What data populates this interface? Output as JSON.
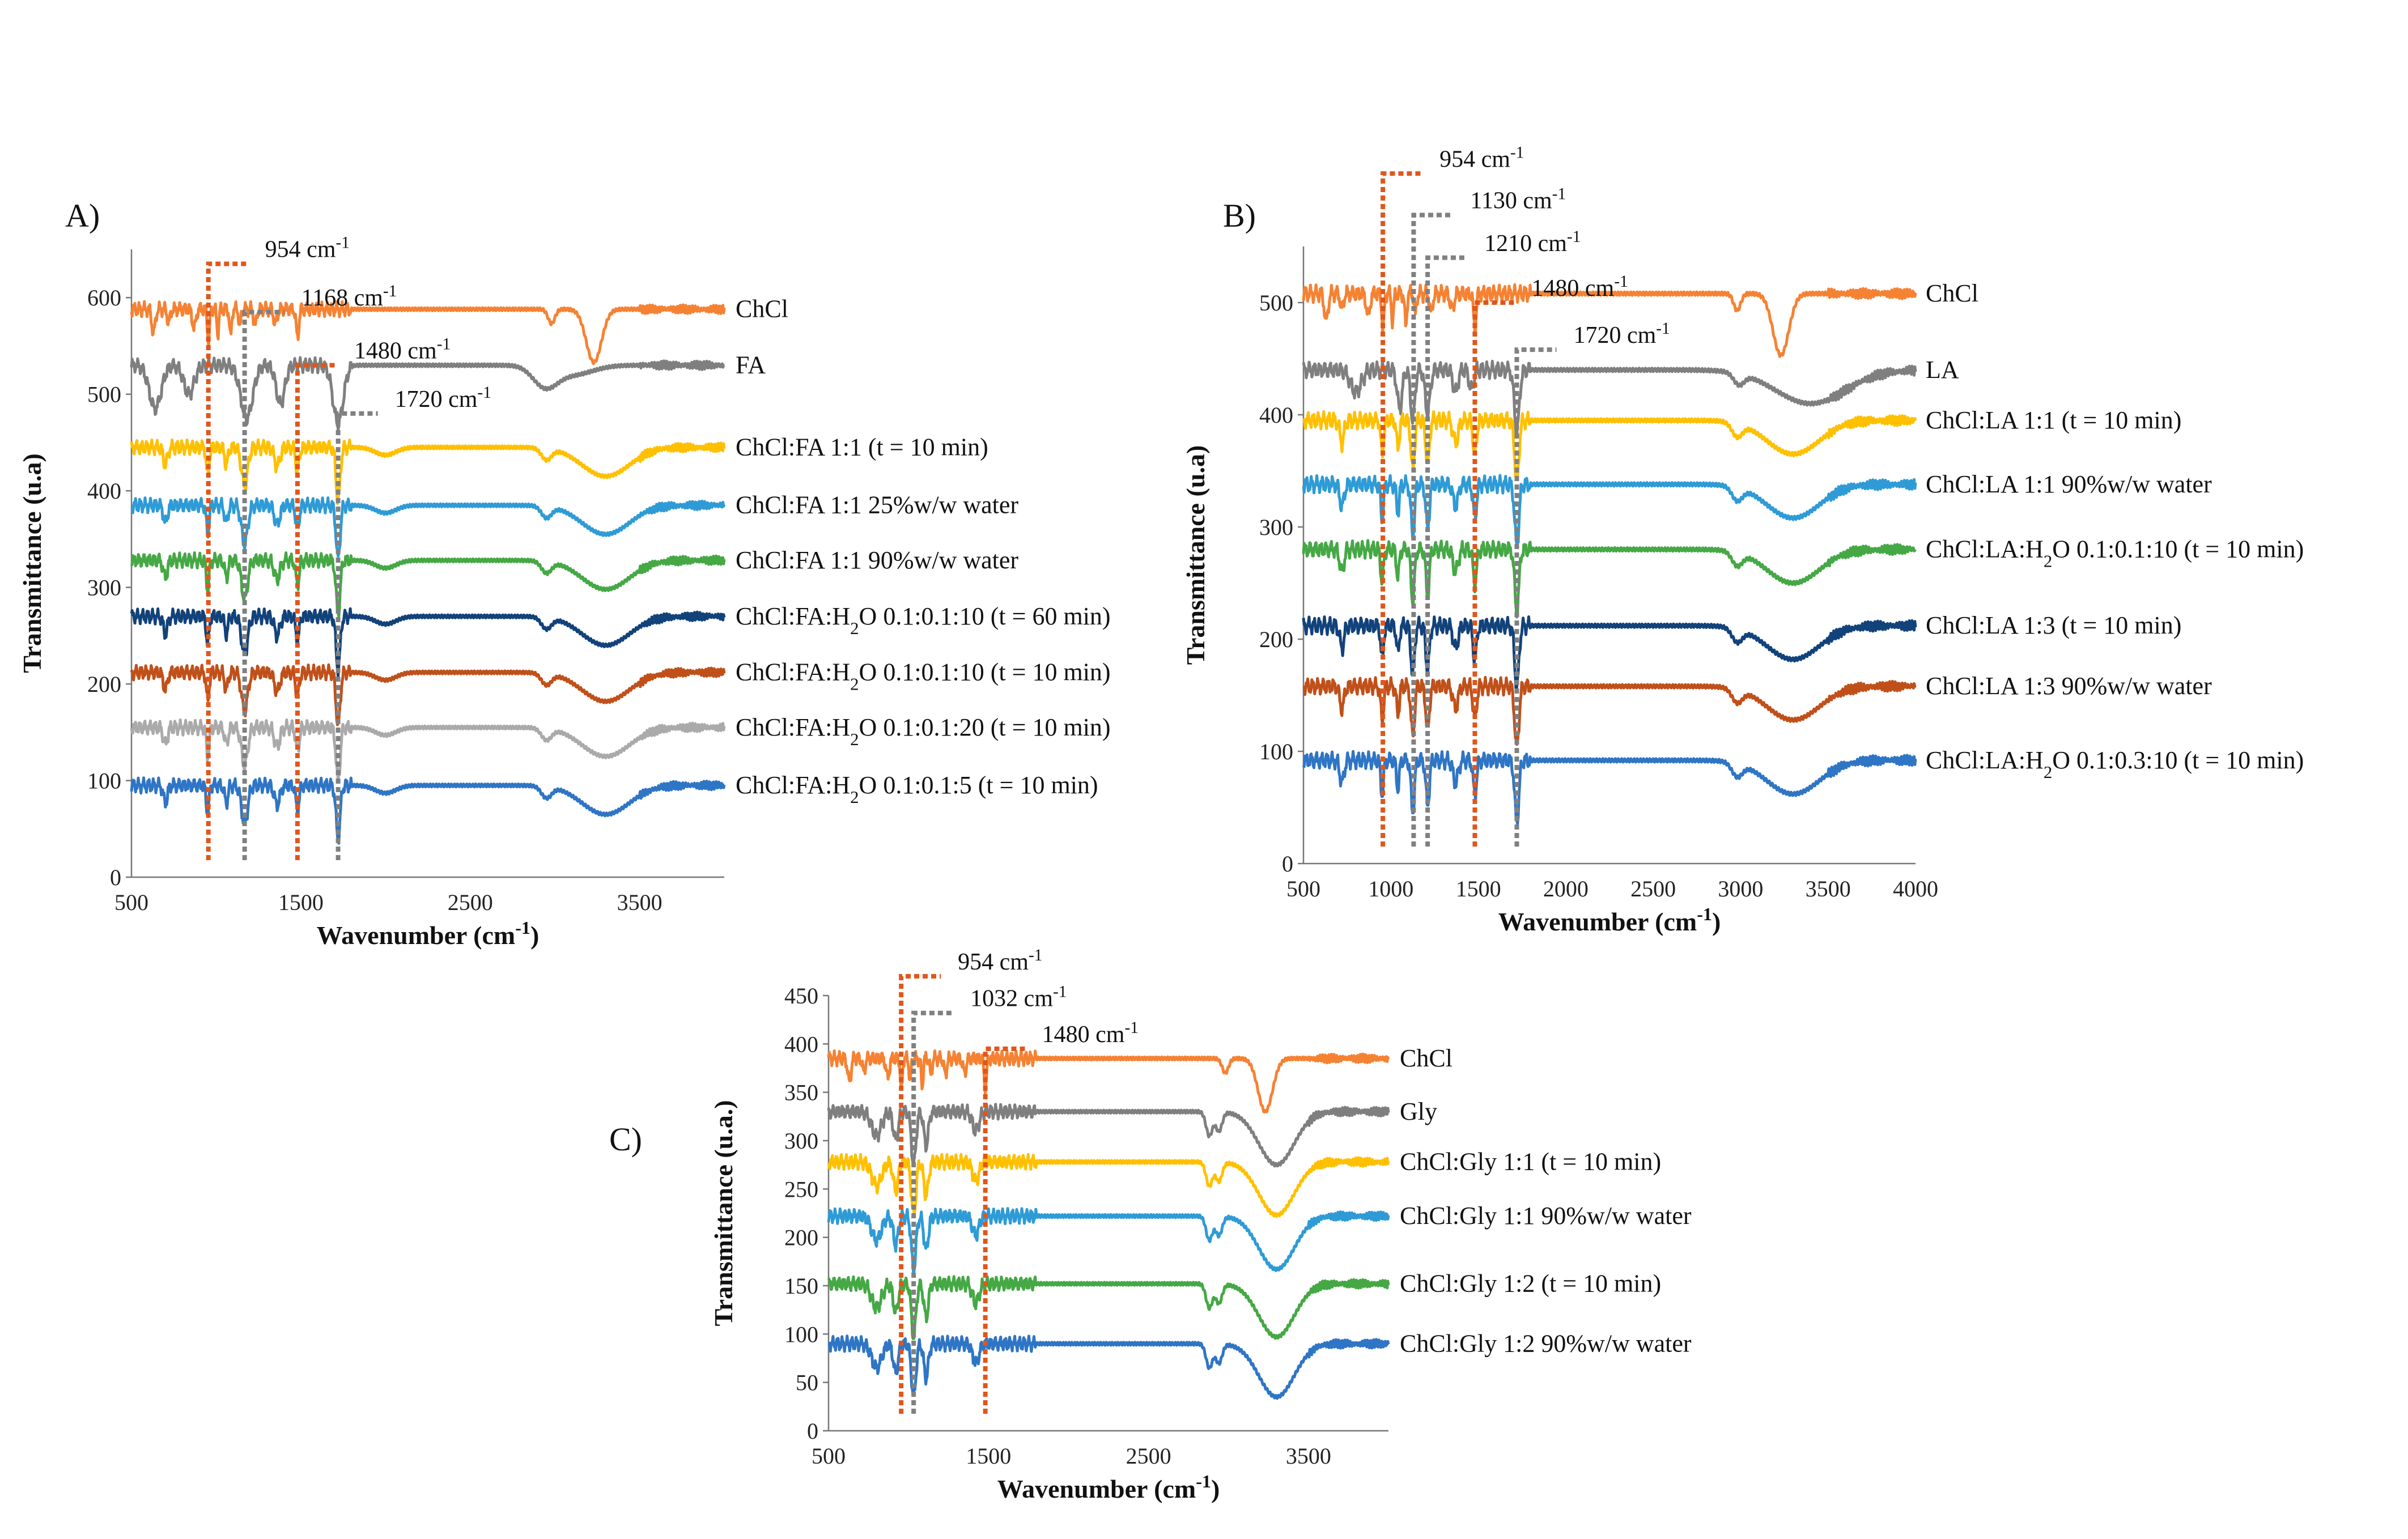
{
  "chart_data": [
    {
      "panel": "A)",
      "type": "line",
      "xlabel": "Wavenumber (cm-1)",
      "ylabel": "Transmittance (u.a)",
      "xlim": [
        500,
        4000
      ],
      "ylim": [
        0,
        650
      ],
      "xticks": [
        500,
        1500,
        2500,
        3500
      ],
      "yticks": [
        0,
        100,
        200,
        300,
        400,
        500,
        600
      ],
      "markers": [
        {
          "wavenumber": 954,
          "label": "954 cm-1",
          "color": "#E0561B",
          "top": 635
        },
        {
          "wavenumber": 1168,
          "label": "1168 cm-1",
          "color": "#808080",
          "top": 585
        },
        {
          "wavenumber": 1480,
          "label": "1480 cm-1",
          "color": "#E0561B",
          "top": 530
        },
        {
          "wavenumber": 1720,
          "label": "1720 cm-1",
          "color": "#808080",
          "top": 480
        }
      ],
      "series": [
        {
          "name": "ChCl",
          "label": "ChCl",
          "color": "#F58233",
          "baseline": 588,
          "profile": "chcl"
        },
        {
          "name": "FA",
          "label": "FA",
          "color": "#7F7F7F",
          "baseline": 530,
          "profile": "fa"
        },
        {
          "name": "ChCl:FA 1:1 (t = 10 min)",
          "label": "ChCl:FA 1:1 (t = 10 min)",
          "color": "#FFC000",
          "baseline": 445,
          "profile": "mix"
        },
        {
          "name": "ChCl:FA 1:1 25%w/w water",
          "label": "ChCl:FA 1:1 25%w/w water",
          "color": "#2E9BD6",
          "baseline": 385,
          "profile": "mix"
        },
        {
          "name": "ChCl:FA 1:1 90%w/w water",
          "label": "ChCl:FA 1:1 90%w/w water",
          "color": "#45A845",
          "baseline": 328,
          "profile": "mix"
        },
        {
          "name": "ChCl:FA:H2O 0.1:0.1:10 (t = 60 min)",
          "label": "ChCl:FA:H2O 0.1:0.1:10 (t = 60 min)",
          "color": "#12427A",
          "baseline": 270,
          "profile": "mix"
        },
        {
          "name": "ChCl:FA:H2O 0.1:0.1:10 (t = 10 min)",
          "label": "ChCl:FA:H2O 0.1:0.1:10 (t = 10 min)",
          "color": "#C0501A",
          "baseline": 212,
          "profile": "mix"
        },
        {
          "name": "ChCl:FA:H2O 0.1:0.1:20 (t = 10 min)",
          "label": "ChCl:FA:H2O 0.1:0.1:20 (t = 10 min)",
          "color": "#AAAAAA",
          "baseline": 155,
          "profile": "mix"
        },
        {
          "name": "ChCl:FA:H2O 0.1:0.1:5 (t = 10 min)",
          "label": "ChCl:FA:H2O 0.1:0.1:5 (t = 10 min)",
          "color": "#2F75C5",
          "baseline": 95,
          "profile": "mix"
        }
      ]
    },
    {
      "panel": "B)",
      "type": "line",
      "xlabel": "Wavenumber (cm-1)",
      "ylabel": "Transmittance (u.a)",
      "xlim": [
        500,
        4000
      ],
      "ylim": [
        0,
        550
      ],
      "xticks": [
        500,
        1000,
        1500,
        2000,
        2500,
        3000,
        3500,
        4000
      ],
      "yticks": [
        0,
        100,
        200,
        300,
        400,
        500
      ],
      "markers": [
        {
          "wavenumber": 954,
          "label": "954 cm-1",
          "color": "#E0561B",
          "top": 615
        },
        {
          "wavenumber": 1130,
          "label": "1130 cm-1",
          "color": "#808080",
          "top": 578
        },
        {
          "wavenumber": 1210,
          "label": "1210 cm-1",
          "color": "#808080",
          "top": 540
        },
        {
          "wavenumber": 1480,
          "label": "1480 cm-1",
          "color": "#E0561B",
          "top": 500
        },
        {
          "wavenumber": 1720,
          "label": "1720 cm-1",
          "color": "#808080",
          "top": 458
        }
      ],
      "series": [
        {
          "name": "ChCl",
          "label": "ChCl",
          "color": "#F58233",
          "baseline": 508,
          "profile": "chcl"
        },
        {
          "name": "LA",
          "label": "LA",
          "color": "#7F7F7F",
          "baseline": 440,
          "profile": "la"
        },
        {
          "name": "ChCl:LA 1:1 (t = 10 min)",
          "label": "ChCl:LA 1:1 (t = 10 min)",
          "color": "#FFC000",
          "baseline": 395,
          "profile": "mixla"
        },
        {
          "name": "ChCl:LA 1:1 90%w/w water",
          "label": "ChCl:LA 1:1 90%w/w water",
          "color": "#2E9BD6",
          "baseline": 338,
          "profile": "mixla"
        },
        {
          "name": "ChCl:LA:H2O 0.1:0.1:10 (t = 10 min)",
          "label": "ChCl:LA:H2O 0.1:0.1:10 (t = 10 min)",
          "color": "#45A845",
          "baseline": 280,
          "profile": "mixla"
        },
        {
          "name": "ChCl:LA 1:3 (t = 10 min)",
          "label": "ChCl:LA 1:3 (t = 10 min)",
          "color": "#12427A",
          "baseline": 212,
          "profile": "mixla"
        },
        {
          "name": "ChCl:LA 1:3 90%w/w water",
          "label": "ChCl:LA 1:3 90%w/w water",
          "color": "#C0501A",
          "baseline": 158,
          "profile": "mixla"
        },
        {
          "name": "ChCl:LA:H2O 0.1:0.3:10 (t = 10 min)",
          "label": "ChCl:LA:H2O 0.1:0.3:10 (t = 10 min)",
          "color": "#2F75C5",
          "baseline": 92,
          "profile": "mixla"
        }
      ]
    },
    {
      "panel": "C)",
      "type": "line",
      "xlabel": "Wavenumber (cm-1)",
      "ylabel": "Transmittance (u.a.)",
      "xlim": [
        500,
        4000
      ],
      "ylim": [
        0,
        450
      ],
      "xticks": [
        500,
        1500,
        2500,
        3500
      ],
      "yticks": [
        0,
        50,
        100,
        150,
        200,
        250,
        300,
        350,
        400,
        450
      ],
      "markers": [
        {
          "wavenumber": 954,
          "label": "954 cm-1",
          "color": "#E0561B",
          "top": 470
        },
        {
          "wavenumber": 1032,
          "label": "1032 cm-1",
          "color": "#808080",
          "top": 432
        },
        {
          "wavenumber": 1480,
          "label": "1480 cm-1",
          "color": "#E0561B",
          "top": 395
        }
      ],
      "series": [
        {
          "name": "ChCl",
          "label": "ChCl",
          "color": "#F58233",
          "baseline": 385,
          "profile": "chcl"
        },
        {
          "name": "Gly",
          "label": "Gly",
          "color": "#7F7F7F",
          "baseline": 330,
          "profile": "gly"
        },
        {
          "name": "ChCl:Gly 1:1 (t = 10 min)",
          "label": " ChCl:Gly 1:1 (t = 10 min)",
          "color": "#FFC000",
          "baseline": 278,
          "profile": "gly"
        },
        {
          "name": "ChCl:Gly 1:1 90%w/w water",
          "label": "ChCl:Gly 1:1 90%w/w water",
          "color": "#2E9BD6",
          "baseline": 222,
          "profile": "gly"
        },
        {
          "name": "ChCl:Gly 1:2 (t = 10 min)",
          "label": "ChCl:Gly 1:2 (t = 10 min)",
          "color": "#45A845",
          "baseline": 152,
          "profile": "gly"
        },
        {
          "name": "ChCl:Gly 1:2 90%w/w water",
          "label": "ChCl:Gly 1:2 90%w/w water",
          "color": "#2F75C5",
          "baseline": 90,
          "profile": "gly"
        }
      ]
    }
  ]
}
